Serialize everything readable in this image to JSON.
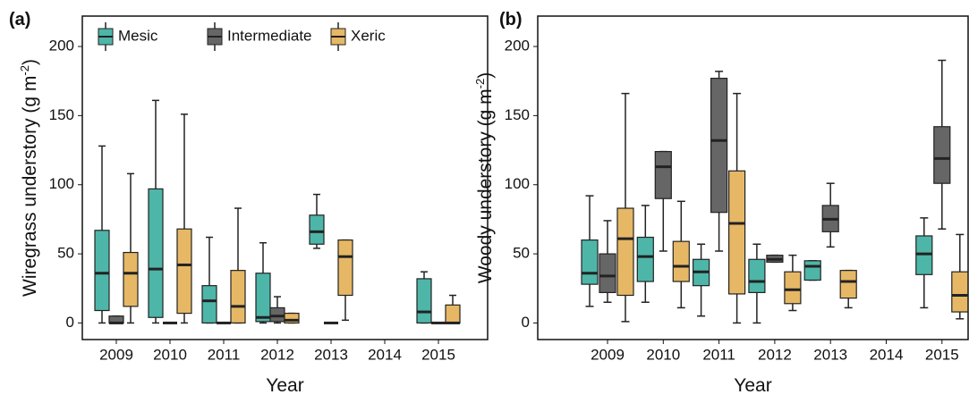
{
  "chart_data": [
    {
      "type": "box",
      "panel_label": "(a)",
      "ylabel": {
        "text": "Wiregrass understory (g m",
        "sup": "-2",
        "end": ")"
      },
      "xlabel": "Year",
      "categories": [
        "2009",
        "2010",
        "2011",
        "2012",
        "2013",
        "2014",
        "2015"
      ],
      "ylim": [
        -12,
        222
      ],
      "yticks": [
        0,
        50,
        100,
        150,
        200
      ],
      "legend": "top-left",
      "series": [
        {
          "name": "Mesic",
          "color": "#4db6a8",
          "values": [
            [
              0,
              9,
              36,
              67,
              128
            ],
            [
              0,
              4,
              39,
              97,
              161
            ],
            [
              0,
              0,
              16,
              27,
              62
            ],
            [
              0,
              1,
              4,
              36,
              58
            ],
            [
              54,
              57,
              66,
              78,
              93
            ],
            null,
            [
              0,
              0,
              8,
              32,
              37
            ]
          ]
        },
        {
          "name": "Intermediate",
          "color": "#666666",
          "values": [
            [
              0,
              0,
              0,
              5,
              5
            ],
            [
              0,
              0,
              0,
              0,
              0
            ],
            [
              0,
              0,
              0,
              0,
              0
            ],
            [
              0,
              1,
              5,
              11,
              19
            ],
            [
              0,
              0,
              0,
              0,
              0
            ],
            null,
            [
              0,
              0,
              0,
              0,
              0
            ]
          ]
        },
        {
          "name": "Xeric",
          "color": "#e6b865",
          "values": [
            [
              0,
              12,
              36,
              51,
              108
            ],
            [
              0,
              7,
              42,
              68,
              151
            ],
            [
              0,
              0,
              12,
              38,
              83
            ],
            [
              0,
              0,
              2,
              7,
              7
            ],
            [
              2,
              20,
              48,
              60,
              60
            ],
            null,
            [
              0,
              0,
              0,
              13,
              20
            ]
          ]
        }
      ]
    },
    {
      "type": "box",
      "panel_label": "(b)",
      "ylabel": {
        "text": "Woody understory (g m",
        "sup": "-2",
        "end": ")"
      },
      "xlabel": "Year",
      "categories": [
        "2009",
        "2010",
        "2011",
        "2012",
        "2013",
        "2014",
        "2015"
      ],
      "ylim": [
        -12,
        222
      ],
      "yticks": [
        0,
        50,
        100,
        150,
        200
      ],
      "series": [
        {
          "color": "#4db6a8",
          "values": [
            [
              12,
              28,
              36,
              60,
              92
            ],
            [
              15,
              30,
              48,
              62,
              85
            ],
            [
              5,
              27,
              37,
              46,
              57
            ],
            [
              0,
              22,
              30,
              46,
              57
            ],
            [
              31,
              31,
              41,
              45,
              45
            ],
            null,
            [
              11,
              35,
              50,
              63,
              76
            ]
          ]
        },
        {
          "color": "#666666",
          "values": [
            [
              15,
              22,
              34,
              50,
              74
            ],
            [
              52,
              90,
              113,
              124,
              124
            ],
            [
              52,
              80,
              132,
              177,
              182
            ],
            [
              44,
              44,
              46,
              49,
              49
            ],
            [
              55,
              66,
              75,
              85,
              101
            ],
            null,
            [
              68,
              101,
              119,
              142,
              190
            ]
          ]
        },
        {
          "color": "#e6b865",
          "values": [
            [
              1,
              20,
              61,
              83,
              166
            ],
            [
              11,
              30,
              41,
              59,
              88
            ],
            [
              0,
              21,
              72,
              110,
              166
            ],
            [
              9,
              14,
              24,
              37,
              49
            ],
            [
              11,
              18,
              30,
              38,
              38
            ],
            null,
            [
              3,
              8,
              20,
              37,
              64
            ]
          ]
        }
      ]
    }
  ]
}
